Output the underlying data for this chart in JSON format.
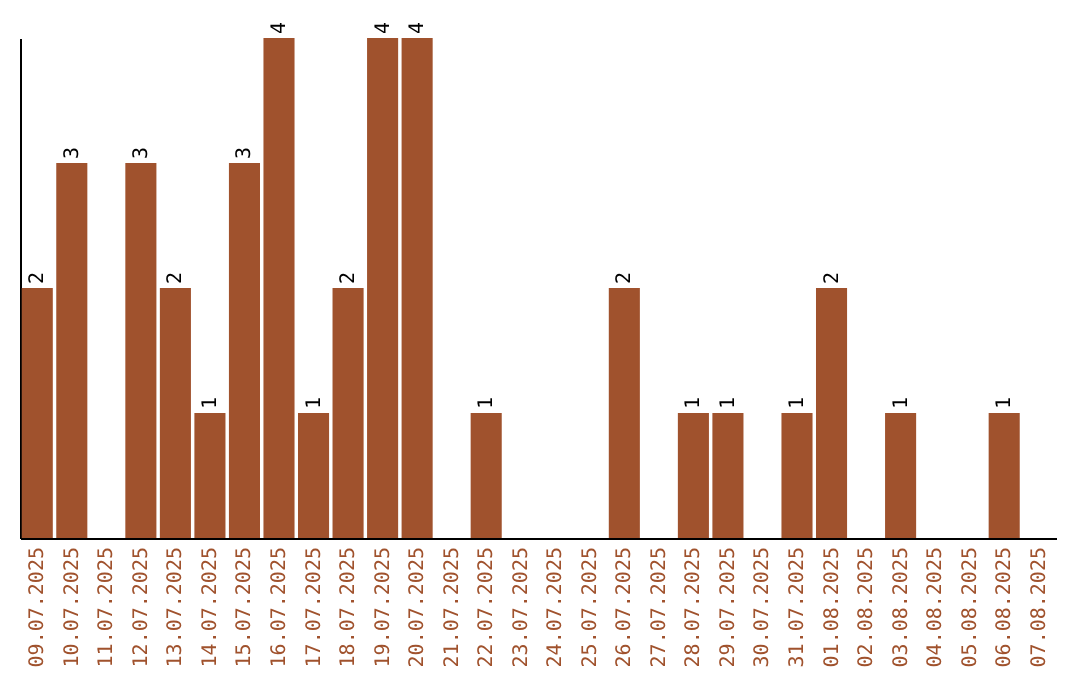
{
  "chart_data": {
    "type": "bar",
    "categories": [
      "09.07.2025",
      "10.07.2025",
      "11.07.2025",
      "12.07.2025",
      "13.07.2025",
      "14.07.2025",
      "15.07.2025",
      "16.07.2025",
      "17.07.2025",
      "18.07.2025",
      "19.07.2025",
      "20.07.2025",
      "21.07.2025",
      "22.07.2025",
      "23.07.2025",
      "24.07.2025",
      "25.07.2025",
      "26.07.2025",
      "27.07.2025",
      "28.07.2025",
      "29.07.2025",
      "30.07.2025",
      "31.07.2025",
      "01.08.2025",
      "02.08.2025",
      "03.08.2025",
      "04.08.2025",
      "05.08.2025",
      "06.08.2025",
      "07.08.2025"
    ],
    "values": [
      2,
      3,
      0,
      3,
      2,
      1,
      3,
      4,
      1,
      2,
      4,
      4,
      0,
      1,
      0,
      0,
      0,
      2,
      0,
      1,
      1,
      0,
      1,
      2,
      0,
      1,
      0,
      0,
      1,
      0
    ],
    "value_labels": [
      "2",
      "3",
      null,
      "3",
      "2",
      "1",
      "3",
      "4",
      "1",
      "2",
      "4",
      "4",
      null,
      "1",
      null,
      null,
      null,
      "2",
      null,
      "1",
      "1",
      null,
      "1",
      "2",
      null,
      "1",
      null,
      null,
      "1",
      null
    ],
    "color": "#a0522d"
  }
}
